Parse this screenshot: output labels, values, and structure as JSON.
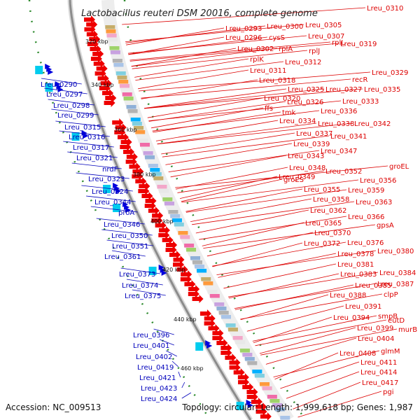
{
  "title": "Lactobacillus reuteri DSM 20016, complete genome",
  "footer": {
    "accession": "Accession: NC_009513",
    "summary": "Topology: circular; Length: 1,999,618 bp; Genes: 1,987"
  },
  "colors": {
    "forward_strand": "#0000dd",
    "reverse_strand": "#ee0000",
    "backbone": "#8c8c8c",
    "tick": "#2e8b2e",
    "label_forward": "#0000bb",
    "label_reverse": "#dd0000"
  },
  "ticks": [
    "320 kbp",
    "340 kbp",
    "360 kbp",
    "380 kbp",
    "400 kbp",
    "420 kbp",
    "440 kbp",
    "460 kbp"
  ],
  "labels_right": [
    "Lreu_0310",
    "Lreu_0293",
    "Lreu_0300",
    "Lreu_0305",
    "Lreu_0296",
    "cysS",
    "Lreu_0307",
    "Lreu_0319",
    "Lreu_0302",
    "rplA",
    "rplL",
    "rplJ",
    "rplK",
    "Lreu_0312",
    "Lreu_0311",
    "Lreu_0329",
    "recR",
    "Lreu_0318",
    "Lreu_0325",
    "Lreu_0327",
    "Lreu_0335",
    "Lreu_0320",
    "Lreu_0326",
    "Lreu_0333",
    "ffs",
    "tmk",
    "Lreu_0336",
    "Lreu_0334",
    "Lreu_0338",
    "Lreu_0342",
    "Lreu_0337",
    "Lreu_0341",
    "Lreu_0339",
    "Lreu_0347",
    "Lreu_0343",
    "groEL",
    "Lreu_0348",
    "Lreu_0352",
    "Lreu_0349",
    "groES",
    "Lreu_0356",
    "Lreu_0355",
    "Lreu_0359",
    "Lreu_0358",
    "Lreu_0363",
    "Lreu_0362",
    "Lreu_0366",
    "Lreu_0365",
    "gpsA",
    "Lreu_0370",
    "Lreu_0372",
    "Lreu_0376",
    "Lreu_0378",
    "Lreu_0380",
    "Lreu_0381",
    "Lreu_0383",
    "Lreu_0384",
    "Lreu_0385",
    "Lreu_0387",
    "Lreu_0388",
    "clpP",
    "Lreu_0391",
    "smpB",
    "Lreu_0394",
    "eutD",
    "Lreu_0399",
    "murB",
    "Lreu_0404",
    "glmM",
    "Lreu_0408",
    "Lreu_0411",
    "Lreu_0414",
    "Lreu_0417",
    "pgi"
  ],
  "labels_left": [
    "Lreu_0290",
    "Lreu_0297",
    "Lreu_0298",
    "Lreu_0299",
    "Lreu_0315",
    "Lreu_0316",
    "Lreu_0317",
    "Lreu_0321",
    "nrdF",
    "Lreu_0323",
    "Lreu_0324",
    "Lreu_0344",
    "proA",
    "Lreu_0346",
    "Lreu_0350",
    "Lreu_0351",
    "Lreu_0361",
    "Lreu_0373",
    "Lreu_0374",
    "Lreu_0375",
    "Lreu_0396",
    "Lreu_0401",
    "Lreu_0402",
    "Lreu_0419",
    "Lreu_0421",
    "Lreu_0423",
    "Lreu_0424"
  ]
}
